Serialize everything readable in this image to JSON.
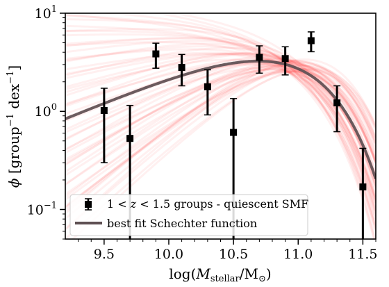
{
  "chart_data": {
    "type": "scatter",
    "xlabel": "log(M_stellar/M_⊙)",
    "ylabel": "ϕ [group⁻¹ dex⁻¹]",
    "xlim": [
      9.2,
      11.6
    ],
    "ylim": [
      0.05,
      10
    ],
    "yscale": "log",
    "x_ticks": [
      9.5,
      10.0,
      10.5,
      11.0,
      11.5
    ],
    "x_tick_labels": [
      "9.5",
      "10.0",
      "10.5",
      "11.0",
      "11.5"
    ],
    "y_ticks": [
      0.1,
      1,
      10
    ],
    "grid": false,
    "legend_position": "lower-left",
    "series": [
      {
        "name": "1 < z < 1.5 groups - quiescent SMF",
        "kind": "errorbar",
        "color": "#000000",
        "points": [
          {
            "x": 9.5,
            "y": 1.02,
            "ylo": 0.3,
            "yhi": 1.72
          },
          {
            "x": 9.7,
            "y": 0.53,
            "ylo": 0.02,
            "yhi": 1.15
          },
          {
            "x": 9.9,
            "y": 3.85,
            "ylo": 2.75,
            "yhi": 4.95
          },
          {
            "x": 10.1,
            "y": 2.8,
            "ylo": 1.82,
            "yhi": 3.8
          },
          {
            "x": 10.3,
            "y": 1.78,
            "ylo": 0.92,
            "yhi": 2.65
          },
          {
            "x": 10.5,
            "y": 0.61,
            "ylo": 0.02,
            "yhi": 1.35
          },
          {
            "x": 10.7,
            "y": 3.55,
            "ylo": 2.45,
            "yhi": 4.65
          },
          {
            "x": 10.9,
            "y": 3.45,
            "ylo": 2.35,
            "yhi": 4.55
          },
          {
            "x": 11.1,
            "y": 5.25,
            "ylo": 4.05,
            "yhi": 6.45
          },
          {
            "x": 11.3,
            "y": 1.22,
            "ylo": 0.62,
            "yhi": 1.82
          },
          {
            "x": 11.5,
            "y": 0.17,
            "ylo": 0.02,
            "yhi": 0.42
          }
        ]
      },
      {
        "name": "best fit Schechter function",
        "kind": "line",
        "color": "#5e4f52",
        "model": "schechter",
        "phi_star": 3.4,
        "log_m_star": 10.95,
        "alpha": -0.45
      }
    ],
    "posterior_band": {
      "color": "#ff0000",
      "samples": 60
    }
  }
}
